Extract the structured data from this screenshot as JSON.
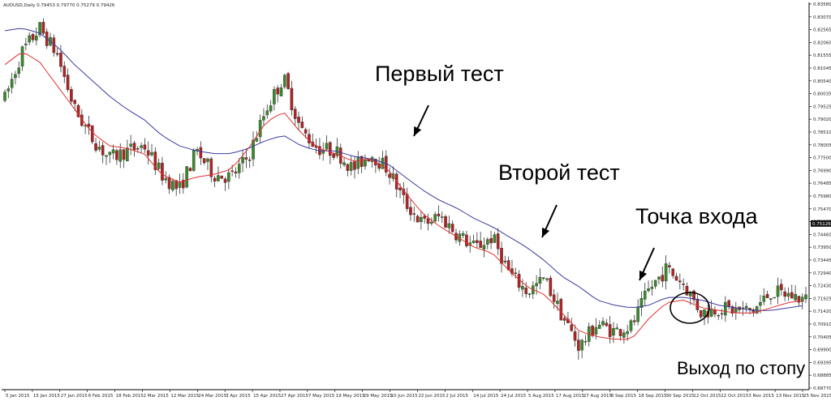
{
  "chart_data": {
    "type": "candlestick",
    "symbol_label": "AUDUSD,Daily 0.79453 0.79770 0.75279 0.79426",
    "ylim": [
      0.6877,
      0.8358
    ],
    "current_price": "0.75126",
    "y_ticks": [
      "0.83580",
      "0.83070",
      "0.82565",
      "0.82060",
      "0.81555",
      "0.81045",
      "0.80540",
      "0.80035",
      "0.79525",
      "0.79020",
      "0.78510",
      "0.78005",
      "0.77500",
      "0.76990",
      "0.76485",
      "0.75980",
      "0.75470",
      "0.74965",
      "0.74460",
      "0.73950",
      "0.73445",
      "0.72940",
      "0.72430",
      "0.71925",
      "0.71420",
      "0.70910",
      "0.70405",
      "0.69900",
      "0.69395",
      "0.68885",
      "0.68770"
    ],
    "x_ticks": [
      "5 Jan 2015",
      "15 Jan 2015",
      "27 Jan 2015",
      "6 Feb 2015",
      "18 Feb 2015",
      "2 Mar 2015",
      "12 Mar 2015",
      "24 Mar 2015",
      "3 Apr 2015",
      "15 Apr 2015",
      "27 Apr 2015",
      "7 May 2015",
      "19 May 2015",
      "29 May 2015",
      "10 Jun 2015",
      "22 Jun 2015",
      "2 Jul 2015",
      "14 Jul 2015",
      "24 Jul 2015",
      "5 Aug 2015",
      "17 Aug 2015",
      "27 Aug 2015",
      "8 Sep 2015",
      "18 Sep 2015",
      "30 Sep 2015",
      "12 Oct 2015",
      "22 Oct 2015",
      "3 Nov 2015",
      "13 Nov 2015",
      "25 Nov 2015"
    ],
    "close_path": [
      0.799,
      0.817,
      0.826,
      0.816,
      0.795,
      0.784,
      0.776,
      0.779,
      0.781,
      0.77,
      0.764,
      0.779,
      0.77,
      0.769,
      0.777,
      0.795,
      0.807,
      0.787,
      0.78,
      0.779,
      0.772,
      0.778,
      0.772,
      0.759,
      0.751,
      0.754,
      0.747,
      0.742,
      0.746,
      0.732,
      0.725,
      0.73,
      0.716,
      0.704,
      0.713,
      0.71,
      0.712,
      0.726,
      0.734,
      0.728,
      0.717,
      0.719,
      0.718,
      0.718,
      0.725,
      0.724,
      0.722
    ],
    "ma_fast": [
      0.812,
      0.817,
      0.813,
      0.804,
      0.795,
      0.786,
      0.781,
      0.78,
      0.778,
      0.77,
      0.767,
      0.769,
      0.77,
      0.772,
      0.78,
      0.79,
      0.794,
      0.786,
      0.78,
      0.778,
      0.775,
      0.776,
      0.772,
      0.763,
      0.755,
      0.75,
      0.746,
      0.742,
      0.74,
      0.733,
      0.727,
      0.724,
      0.717,
      0.71,
      0.708,
      0.707,
      0.707,
      0.715,
      0.721,
      0.722,
      0.719,
      0.718,
      0.717,
      0.717,
      0.719,
      0.721,
      0.722
    ],
    "ma_slow": [
      0.825,
      0.826,
      0.824,
      0.819,
      0.812,
      0.806,
      0.8,
      0.795,
      0.791,
      0.785,
      0.781,
      0.779,
      0.778,
      0.778,
      0.78,
      0.783,
      0.785,
      0.781,
      0.779,
      0.779,
      0.777,
      0.776,
      0.774,
      0.769,
      0.764,
      0.76,
      0.757,
      0.753,
      0.75,
      0.746,
      0.742,
      0.737,
      0.731,
      0.727,
      0.722,
      0.72,
      0.719,
      0.72,
      0.723,
      0.723,
      0.722,
      0.72,
      0.719,
      0.718,
      0.718,
      0.719,
      0.72
    ],
    "colors": {
      "bull": "#3a8a2a",
      "bear": "#b22222",
      "ma_fast": "#e03030",
      "ma_slow": "#3a3aa0",
      "price_box": "#111111"
    },
    "annotations": [
      {
        "text": "Первый тест",
        "at_date": "10 Jun 2015",
        "pointer_price": 0.779
      },
      {
        "text": "Второй тест",
        "at_date": "5 Aug 2015",
        "pointer_price": 0.745
      },
      {
        "text": "Точка входа",
        "at_date": "18 Sep 2015",
        "pointer_price": 0.727
      },
      {
        "text": "Выход по стопу",
        "at_date": "30 Sep 2015"
      }
    ],
    "grid": false
  }
}
